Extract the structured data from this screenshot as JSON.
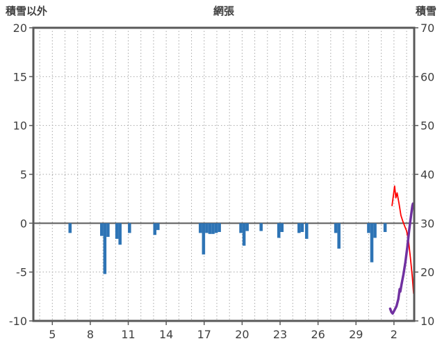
{
  "header": {
    "left_axis_title": "積雪以外",
    "chart_title": "網張",
    "right_axis_title": "積雪"
  },
  "chart_data": {
    "type": "bar",
    "title": "網張",
    "y_left": {
      "label": "積雪以外",
      "range": [
        -10,
        20
      ],
      "ticks": [
        20,
        15,
        10,
        5,
        0,
        -5,
        -10
      ]
    },
    "y_right": {
      "label": "積雪",
      "range": [
        10,
        70
      ],
      "ticks": [
        70,
        60,
        50,
        40,
        30,
        20,
        10
      ]
    },
    "x": {
      "range": [
        3.5,
        33.6
      ],
      "tick_days": [
        5,
        8,
        11,
        14,
        17,
        20,
        23,
        26,
        29,
        32
      ],
      "tick_labels": [
        "5",
        "8",
        "11",
        "14",
        "17",
        "20",
        "23",
        "26",
        "29",
        "2"
      ],
      "grid_every_day": true
    },
    "grid": {
      "color": "#a6a6a6",
      "dash": "1.5 3"
    },
    "frame_color": "#595959",
    "zero_line_color": "#595959",
    "tick_text_color": "#3f3f3f",
    "series": [
      {
        "name": "hourly-bars",
        "type": "bar",
        "axis": "left",
        "color": "#2e74b5",
        "bar_width_days": 0.25,
        "points": [
          [
            6.4,
            -1.0
          ],
          [
            8.9,
            -1.3
          ],
          [
            9.15,
            -5.2
          ],
          [
            9.4,
            -1.4
          ],
          [
            10.1,
            -1.6
          ],
          [
            10.35,
            -2.2
          ],
          [
            11.1,
            -1.0
          ],
          [
            13.1,
            -1.2
          ],
          [
            13.35,
            -0.7
          ],
          [
            16.7,
            -1.0
          ],
          [
            16.95,
            -3.2
          ],
          [
            17.2,
            -1.0
          ],
          [
            17.45,
            -1.1
          ],
          [
            17.7,
            -1.1
          ],
          [
            17.95,
            -1.0
          ],
          [
            18.2,
            -0.9
          ],
          [
            19.9,
            -1.0
          ],
          [
            20.15,
            -2.3
          ],
          [
            20.4,
            -0.8
          ],
          [
            21.5,
            -0.8
          ],
          [
            22.9,
            -1.5
          ],
          [
            23.15,
            -0.9
          ],
          [
            24.5,
            -1.0
          ],
          [
            24.75,
            -0.9
          ],
          [
            25.1,
            -1.6
          ],
          [
            27.4,
            -1.0
          ],
          [
            27.65,
            -2.6
          ],
          [
            30.0,
            -1.0
          ],
          [
            30.25,
            -4.0
          ],
          [
            30.5,
            -1.5
          ],
          [
            31.3,
            -0.9
          ]
        ]
      },
      {
        "name": "red-line",
        "type": "line",
        "axis": "left",
        "color": "#ff0000",
        "stroke_width": 1.8,
        "points": [
          [
            31.85,
            1.8
          ],
          [
            31.95,
            2.8
          ],
          [
            32.05,
            3.8
          ],
          [
            32.15,
            2.6
          ],
          [
            32.25,
            3.1
          ],
          [
            32.4,
            2.0
          ],
          [
            32.55,
            0.8
          ],
          [
            32.7,
            0.2
          ],
          [
            32.85,
            -0.3
          ],
          [
            33.0,
            -0.8
          ],
          [
            33.15,
            -1.8
          ],
          [
            33.3,
            -3.5
          ],
          [
            33.45,
            -5.5
          ],
          [
            33.55,
            -7.2
          ]
        ]
      },
      {
        "name": "purple-line",
        "type": "line",
        "axis": "right",
        "color": "#7030a0",
        "stroke_width": 3.5,
        "points": [
          [
            31.7,
            12.5
          ],
          [
            31.8,
            11.8
          ],
          [
            31.9,
            11.5
          ],
          [
            32.0,
            12.0
          ],
          [
            32.1,
            12.5
          ],
          [
            32.2,
            13.0
          ],
          [
            32.35,
            14.5
          ],
          [
            32.45,
            16.5
          ],
          [
            32.5,
            16.0
          ],
          [
            32.6,
            17.5
          ],
          [
            32.75,
            19.5
          ],
          [
            32.9,
            22.0
          ],
          [
            33.05,
            25.0
          ],
          [
            33.2,
            28.5
          ],
          [
            33.35,
            31.5
          ],
          [
            33.45,
            33.5
          ],
          [
            33.5,
            34.0
          ]
        ]
      }
    ]
  }
}
